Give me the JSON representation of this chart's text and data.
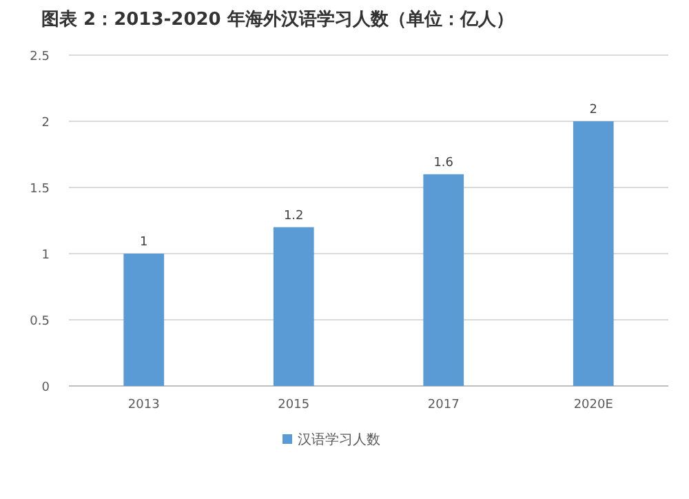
{
  "chart_data": {
    "type": "bar",
    "title": "图表 2：2013-2020 年海外汉语学习人数（单位：亿人）",
    "categories": [
      "2013",
      "2015",
      "2017",
      "2020E"
    ],
    "series": [
      {
        "name": "汉语学习人数",
        "color": "#5b9bd5",
        "values": [
          1,
          1.2,
          1.6,
          2
        ]
      }
    ],
    "ylim": [
      0,
      2.5
    ],
    "yticks": [
      0,
      0.5,
      1,
      1.5,
      2,
      2.5
    ],
    "grid": "y",
    "legend": "bottom",
    "data_labels": true
  }
}
